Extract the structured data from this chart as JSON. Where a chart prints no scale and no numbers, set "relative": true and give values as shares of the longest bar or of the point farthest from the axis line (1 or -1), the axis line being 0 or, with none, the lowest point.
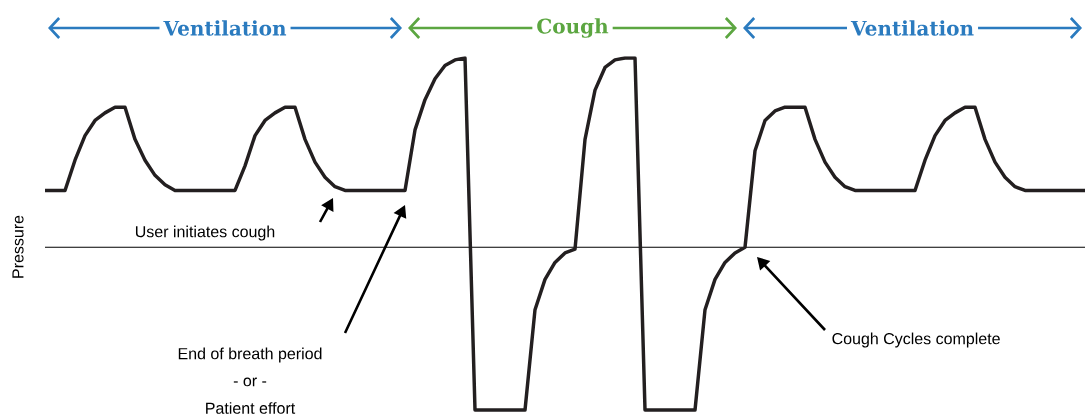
{
  "chart_data": {
    "type": "line",
    "relative": true,
    "ylabel": "Pressure",
    "color": "#231f20",
    "categories": [
      null,
      null,
      null,
      null,
      null,
      null,
      null,
      null,
      null,
      null,
      null,
      null,
      null,
      null,
      null,
      null,
      null,
      null,
      null,
      null,
      null,
      null,
      null,
      null,
      null,
      null,
      null,
      null,
      null,
      null,
      null,
      null,
      null,
      null,
      null,
      null,
      null,
      null,
      null,
      null,
      null,
      null,
      null,
      null,
      null,
      null,
      null,
      null,
      null,
      null,
      null,
      null,
      null,
      null,
      null,
      null,
      null,
      null,
      null,
      null,
      null,
      null,
      null,
      null,
      null,
      null,
      null,
      null,
      null,
      null,
      null,
      null,
      null,
      null,
      null,
      null,
      null,
      null,
      null,
      null,
      null,
      null,
      null,
      null,
      null,
      null,
      null,
      null,
      null,
      null,
      null,
      null,
      null,
      null,
      null,
      null,
      null,
      null,
      null,
      null,
      null,
      null,
      null,
      null,
      null
    ],
    "values": [
      0.3,
      0.3,
      0.3,
      0.46,
      0.59,
      0.67,
      0.71,
      0.74,
      0.74,
      0.57,
      0.46,
      0.38,
      0.33,
      0.3,
      0.3,
      0.3,
      0.3,
      0.3,
      0.3,
      0.3,
      0.43,
      0.59,
      0.67,
      0.71,
      0.74,
      0.74,
      0.57,
      0.45,
      0.37,
      0.32,
      0.3,
      0.3,
      0.3,
      0.3,
      0.3,
      0.3,
      0.3,
      0.62,
      0.78,
      0.89,
      0.96,
      0.99,
      1,
      -0.86,
      -0.86,
      -0.86,
      -0.86,
      -0.86,
      -0.86,
      -0.33,
      -0.17,
      -0.08,
      -0.03,
      -0.01,
      0.57,
      0.83,
      0.95,
      0.99,
      1,
      1,
      -0.86,
      -0.86,
      -0.86,
      -0.86,
      -0.86,
      -0.86,
      -0.33,
      -0.17,
      -0.08,
      -0.03,
      0,
      0.51,
      0.67,
      0.72,
      0.74,
      0.74,
      0.74,
      0.57,
      0.45,
      0.37,
      0.32,
      0.3,
      0.3,
      0.3,
      0.3,
      0.3,
      0.3,
      0.3,
      0.46,
      0.59,
      0.67,
      0.71,
      0.74,
      0.74,
      0.57,
      0.45,
      0.37,
      0.32,
      0.3,
      0.3,
      0.3,
      0.3,
      0.3,
      0.3,
      0.3
    ],
    "annotations": [
      "Ventilation",
      "Cough",
      "Ventilation",
      "User initiates cough",
      "End of breath period",
      "- or -",
      "Patient effort",
      "Cough Cycles complete"
    ]
  }
}
